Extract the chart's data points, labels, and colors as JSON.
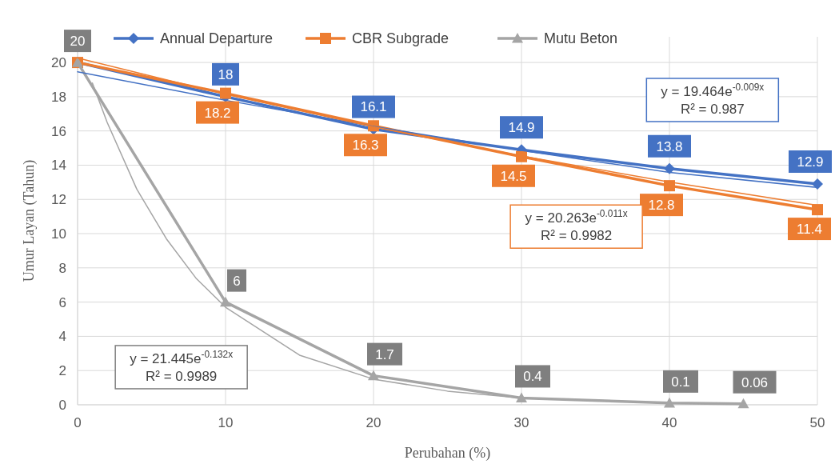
{
  "chart_data": {
    "type": "line",
    "xlabel": "Perubahan (%)",
    "ylabel": "Umur Layan (Tahun)",
    "xlim": [
      0,
      50
    ],
    "xticks": [
      0,
      10,
      20,
      30,
      40,
      50
    ],
    "ylim": [
      0,
      21.5
    ],
    "yticks": [
      0,
      2,
      4,
      6,
      8,
      10,
      12,
      14,
      16,
      18,
      20
    ],
    "grid": true,
    "legend": "top",
    "line_style": "solid",
    "series": [
      {
        "name": "Annual Departure",
        "color": "#4472c4",
        "marker": "diamond",
        "x": [
          0,
          10,
          20,
          30,
          40,
          50
        ],
        "values": [
          20,
          18,
          16.1,
          14.9,
          13.8,
          12.9
        ],
        "value_labels": [
          null,
          "18",
          "16.1",
          "14.9",
          "13.8",
          "12.9"
        ]
      },
      {
        "name": "CBR Subgrade",
        "color": "#ed7d31",
        "marker": "square",
        "x": [
          0,
          10,
          20,
          30,
          40,
          50
        ],
        "values": [
          20,
          18.2,
          16.3,
          14.5,
          12.8,
          11.4
        ],
        "value_labels": [
          null,
          "18.2",
          "16.3",
          "14.5",
          "12.8",
          "11.4"
        ]
      },
      {
        "name": "Mutu Beton",
        "color": "#a5a5a5",
        "marker": "triangle",
        "x": [
          0,
          10,
          20,
          30,
          40,
          45
        ],
        "values": [
          20,
          6,
          1.7,
          0.4,
          0.1,
          0.06
        ],
        "value_labels": [
          "20",
          "6",
          "1.7",
          "0.4",
          "0.1",
          "0.06"
        ]
      },
      {
        "type": "line",
        "color": "#4472c4",
        "marker": "none",
        "x": [
          0,
          10,
          20,
          30,
          40,
          50
        ],
        "values": [
          19.46,
          17.79,
          16.26,
          14.86,
          13.58,
          12.7
        ]
      },
      {
        "type": "line",
        "color": "#ed7d31",
        "marker": "none",
        "x": [
          0,
          10,
          20,
          30,
          40,
          50
        ],
        "values": [
          20.26,
          18.14,
          16.24,
          14.54,
          13.02,
          11.65
        ]
      },
      {
        "type": "line",
        "color": "#a5a5a5",
        "marker": "none",
        "x": [
          1,
          2,
          4,
          6,
          8,
          10,
          15,
          20,
          25,
          30,
          40,
          45
        ],
        "values": [
          18.8,
          16.5,
          12.6,
          9.7,
          7.4,
          5.7,
          2.9,
          1.5,
          0.8,
          0.4,
          0.1,
          0.06
        ]
      }
    ],
    "annotations": [
      "y = 19.464e$^{-0.009x}$\nR² = 0.987",
      "y = 20.263e$^{-0.011x}$\nR² = 0.9982",
      "y = 21.445e$^{-0.132x}$\nR² = 0.9989"
    ]
  }
}
